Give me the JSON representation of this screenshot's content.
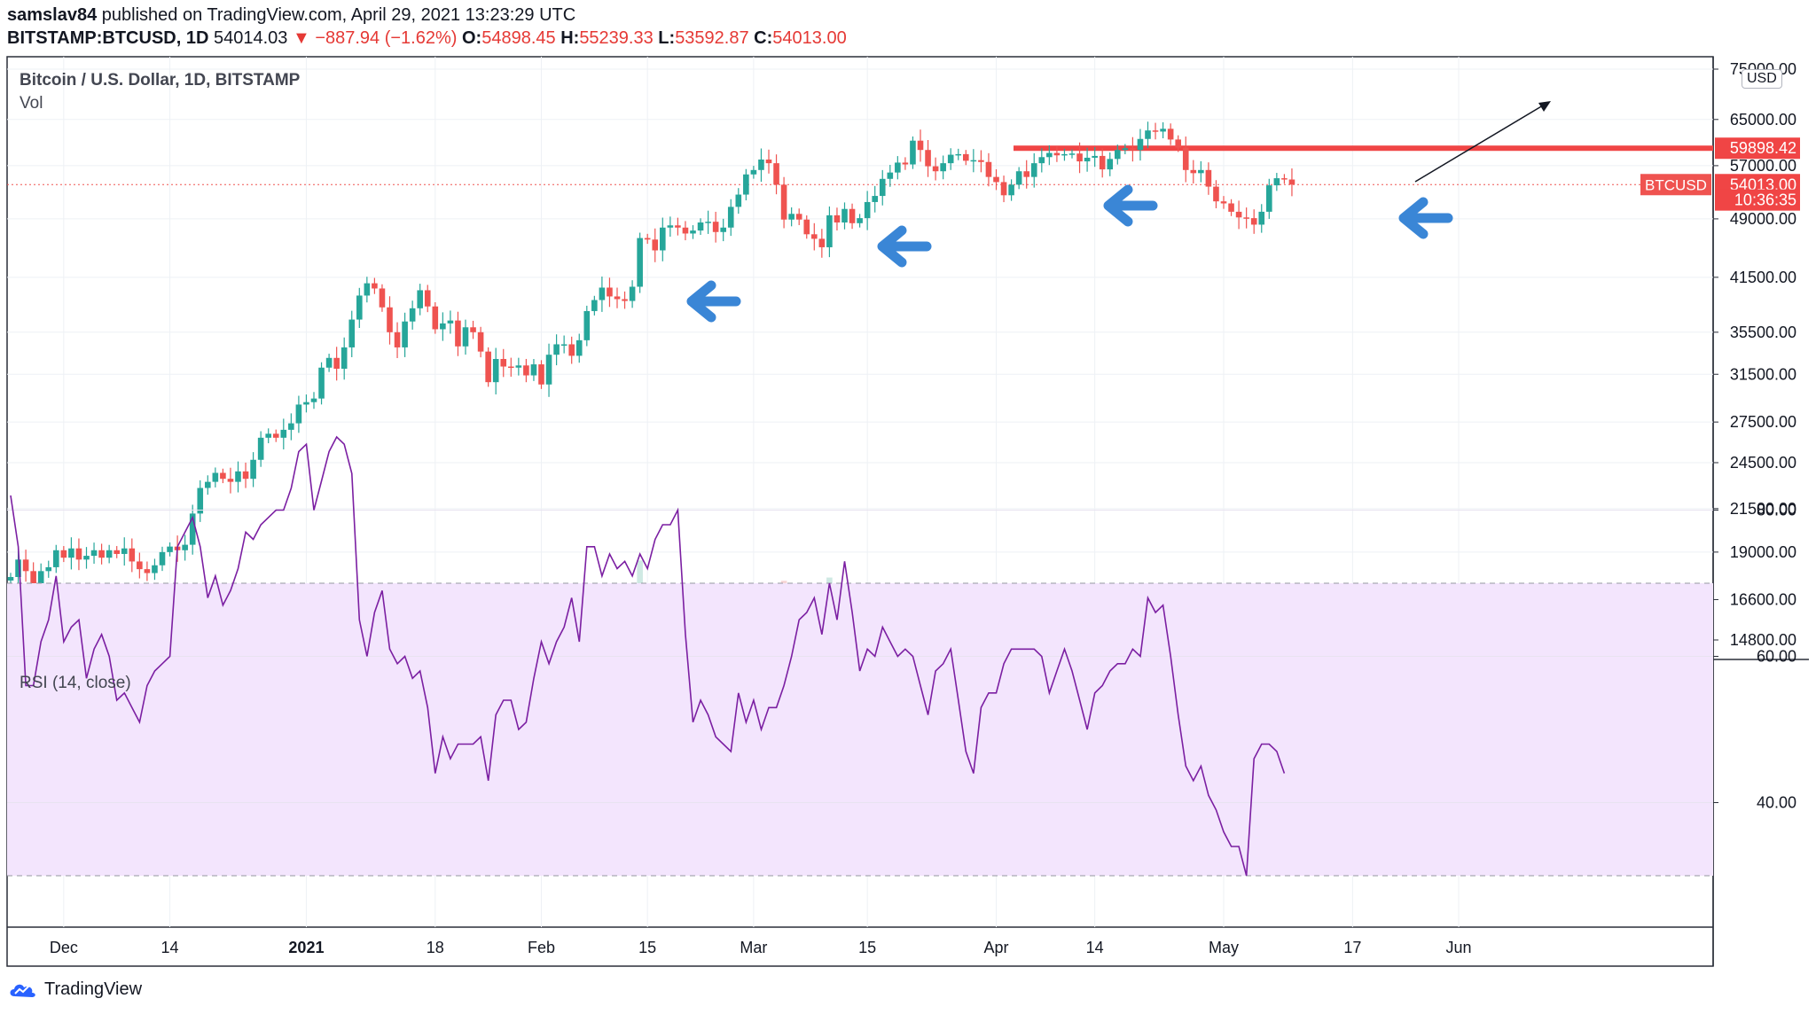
{
  "header": {
    "author": "samslav84",
    "published_text": "published on TradingView.com, April 29, 2021 13:23:29 UTC",
    "symbol": "BITSTAMP:BTCUSD, 1D",
    "last": "54014.03",
    "change": "−887.94 (−1.62%)",
    "o_label": "O:",
    "o_val": "54898.45",
    "h_label": "H:",
    "h_val": "55239.33",
    "l_label": "L:",
    "l_val": "53592.87",
    "c_label": "C:",
    "c_val": "54013.00"
  },
  "main_pane": {
    "title": "Bitcoin / U.S. Dollar, 1D, BITSTAMP",
    "vol_label": "Vol",
    "currency_button": "USD"
  },
  "rsi_pane": {
    "title": "RSI (14, close)"
  },
  "footer": {
    "brand": "TradingView"
  },
  "colors": {
    "up": "#26a69a",
    "down": "#ef5350",
    "rsi_line": "#7b1fa2",
    "rsi_band": "#f3e5fd",
    "resistance": "#f04545",
    "arrow": "#3a86d6"
  },
  "chart_data": [
    {
      "type": "candlestick",
      "title": "Bitcoin / U.S. Dollar, 1D, BITSTAMP",
      "x_ticks": [
        "Dec",
        "14",
        "2021",
        "18",
        "Feb",
        "15",
        "Mar",
        "15",
        "Apr",
        "14",
        "May",
        "17",
        "Jun"
      ],
      "y_ticks": [
        75000,
        65000,
        57000,
        49000,
        41500,
        35500,
        31500,
        27500,
        24500,
        21500,
        19000,
        16600,
        14800
      ],
      "y_scale": "log",
      "price_labels": [
        {
          "text": "59898.42",
          "value": 59898.42,
          "color": "#f04545"
        },
        {
          "text": "54013.00",
          "value": 54013,
          "color": "#f04545"
        },
        {
          "text": "10:36:35",
          "value": 51700,
          "color": "#f04545"
        }
      ],
      "symbol_tag": "BTCUSD",
      "resistance_level": 59898.42,
      "closes": [
        17700,
        18600,
        18000,
        17200,
        18000,
        18200,
        19100,
        18700,
        19200,
        18600,
        18800,
        19100,
        18700,
        19100,
        18900,
        19200,
        18500,
        18100,
        17900,
        18300,
        19000,
        19300,
        19100,
        19400,
        21200,
        22800,
        23200,
        23800,
        23400,
        23200,
        23900,
        23400,
        24700,
        26300,
        26600,
        26300,
        26900,
        27400,
        28900,
        29100,
        29400,
        32100,
        33000,
        32000,
        34000,
        36800,
        39400,
        40800,
        40200,
        38100,
        35500,
        34000,
        36600,
        38000,
        40000,
        38200,
        35800,
        36400,
        36700,
        34100,
        36000,
        35500,
        33600,
        30800,
        32900,
        32200,
        32100,
        32300,
        31400,
        32400,
        30600,
        33300,
        34300,
        34300,
        33200,
        34700,
        37700,
        38900,
        40300,
        39300,
        39000,
        38800,
        40400,
        46400,
        46200,
        44800,
        47800,
        48100,
        47800,
        47000,
        47400,
        48500,
        48600,
        47200,
        47800,
        50700,
        52500,
        55600,
        56300,
        58000,
        57400,
        54000,
        48900,
        49700,
        48900,
        46900,
        46300,
        45200,
        49500,
        48500,
        50400,
        48400,
        49100,
        51400,
        52300,
        54900,
        55900,
        57500,
        57200,
        61200,
        59600,
        56900,
        56100,
        57400,
        58800,
        58900,
        57800,
        57900,
        57600,
        55200,
        54400,
        52400,
        54000,
        56100,
        55200,
        57400,
        58400,
        59100,
        58700,
        58900,
        59000,
        57700,
        58300,
        58600,
        56400,
        58100,
        59600,
        59900,
        59600,
        61500,
        63000,
        62800,
        63300,
        61400,
        60000,
        56300,
        55800,
        56300,
        53700,
        51500,
        51200,
        50000,
        49200,
        49100,
        48200,
        50000,
        53900,
        55000,
        54800,
        54014
      ],
      "ohlc_note": "OHLC approximated from closes; volume shown as bars in the bottom of the main pane",
      "volume_scale_note": "volume unscaled (no axis)"
    },
    {
      "type": "line",
      "title": "RSI (14, close)",
      "y_ticks": [
        80,
        60,
        40
      ],
      "band": [
        30,
        70
      ],
      "values": [
        82,
        75,
        56,
        56,
        62,
        65,
        71,
        62,
        64,
        65,
        57,
        61,
        63,
        60,
        54,
        55,
        53,
        51,
        56,
        58,
        59,
        60,
        75,
        77,
        79,
        75,
        68,
        71,
        67,
        69,
        72,
        77,
        76,
        78,
        79,
        80,
        80,
        83,
        88,
        89,
        80,
        84,
        88,
        90,
        89,
        85,
        65,
        60,
        66,
        69,
        61,
        59,
        60,
        57,
        58,
        53,
        44,
        49,
        46,
        48,
        48,
        48,
        49,
        43,
        52,
        54,
        54,
        50,
        51,
        57,
        62,
        59,
        62,
        64,
        68,
        62,
        75,
        75,
        71,
        74,
        72,
        73,
        71,
        74,
        72,
        76,
        78,
        78,
        80,
        63,
        51,
        54,
        52,
        49,
        48,
        47,
        55,
        51,
        54,
        50,
        53,
        53,
        56,
        60,
        65,
        66,
        68,
        63,
        70,
        65,
        73,
        66,
        58,
        61,
        60,
        64,
        62,
        60,
        61,
        60,
        56,
        52,
        58,
        59,
        61,
        54,
        47,
        44,
        53,
        55,
        55,
        59,
        61,
        61,
        61,
        61,
        60,
        55,
        58,
        61,
        58,
        54,
        50,
        55,
        56,
        58,
        59,
        59,
        61,
        60,
        68,
        66,
        67,
        60,
        52,
        45,
        43,
        45,
        41,
        39,
        36,
        34,
        34,
        30,
        46,
        48,
        48,
        47,
        44
      ],
      "x_ticks": [
        "Dec",
        "14",
        "2021",
        "18",
        "Feb",
        "15",
        "Mar",
        "15",
        "Apr",
        "14",
        "May",
        "17",
        "Jun"
      ]
    }
  ]
}
